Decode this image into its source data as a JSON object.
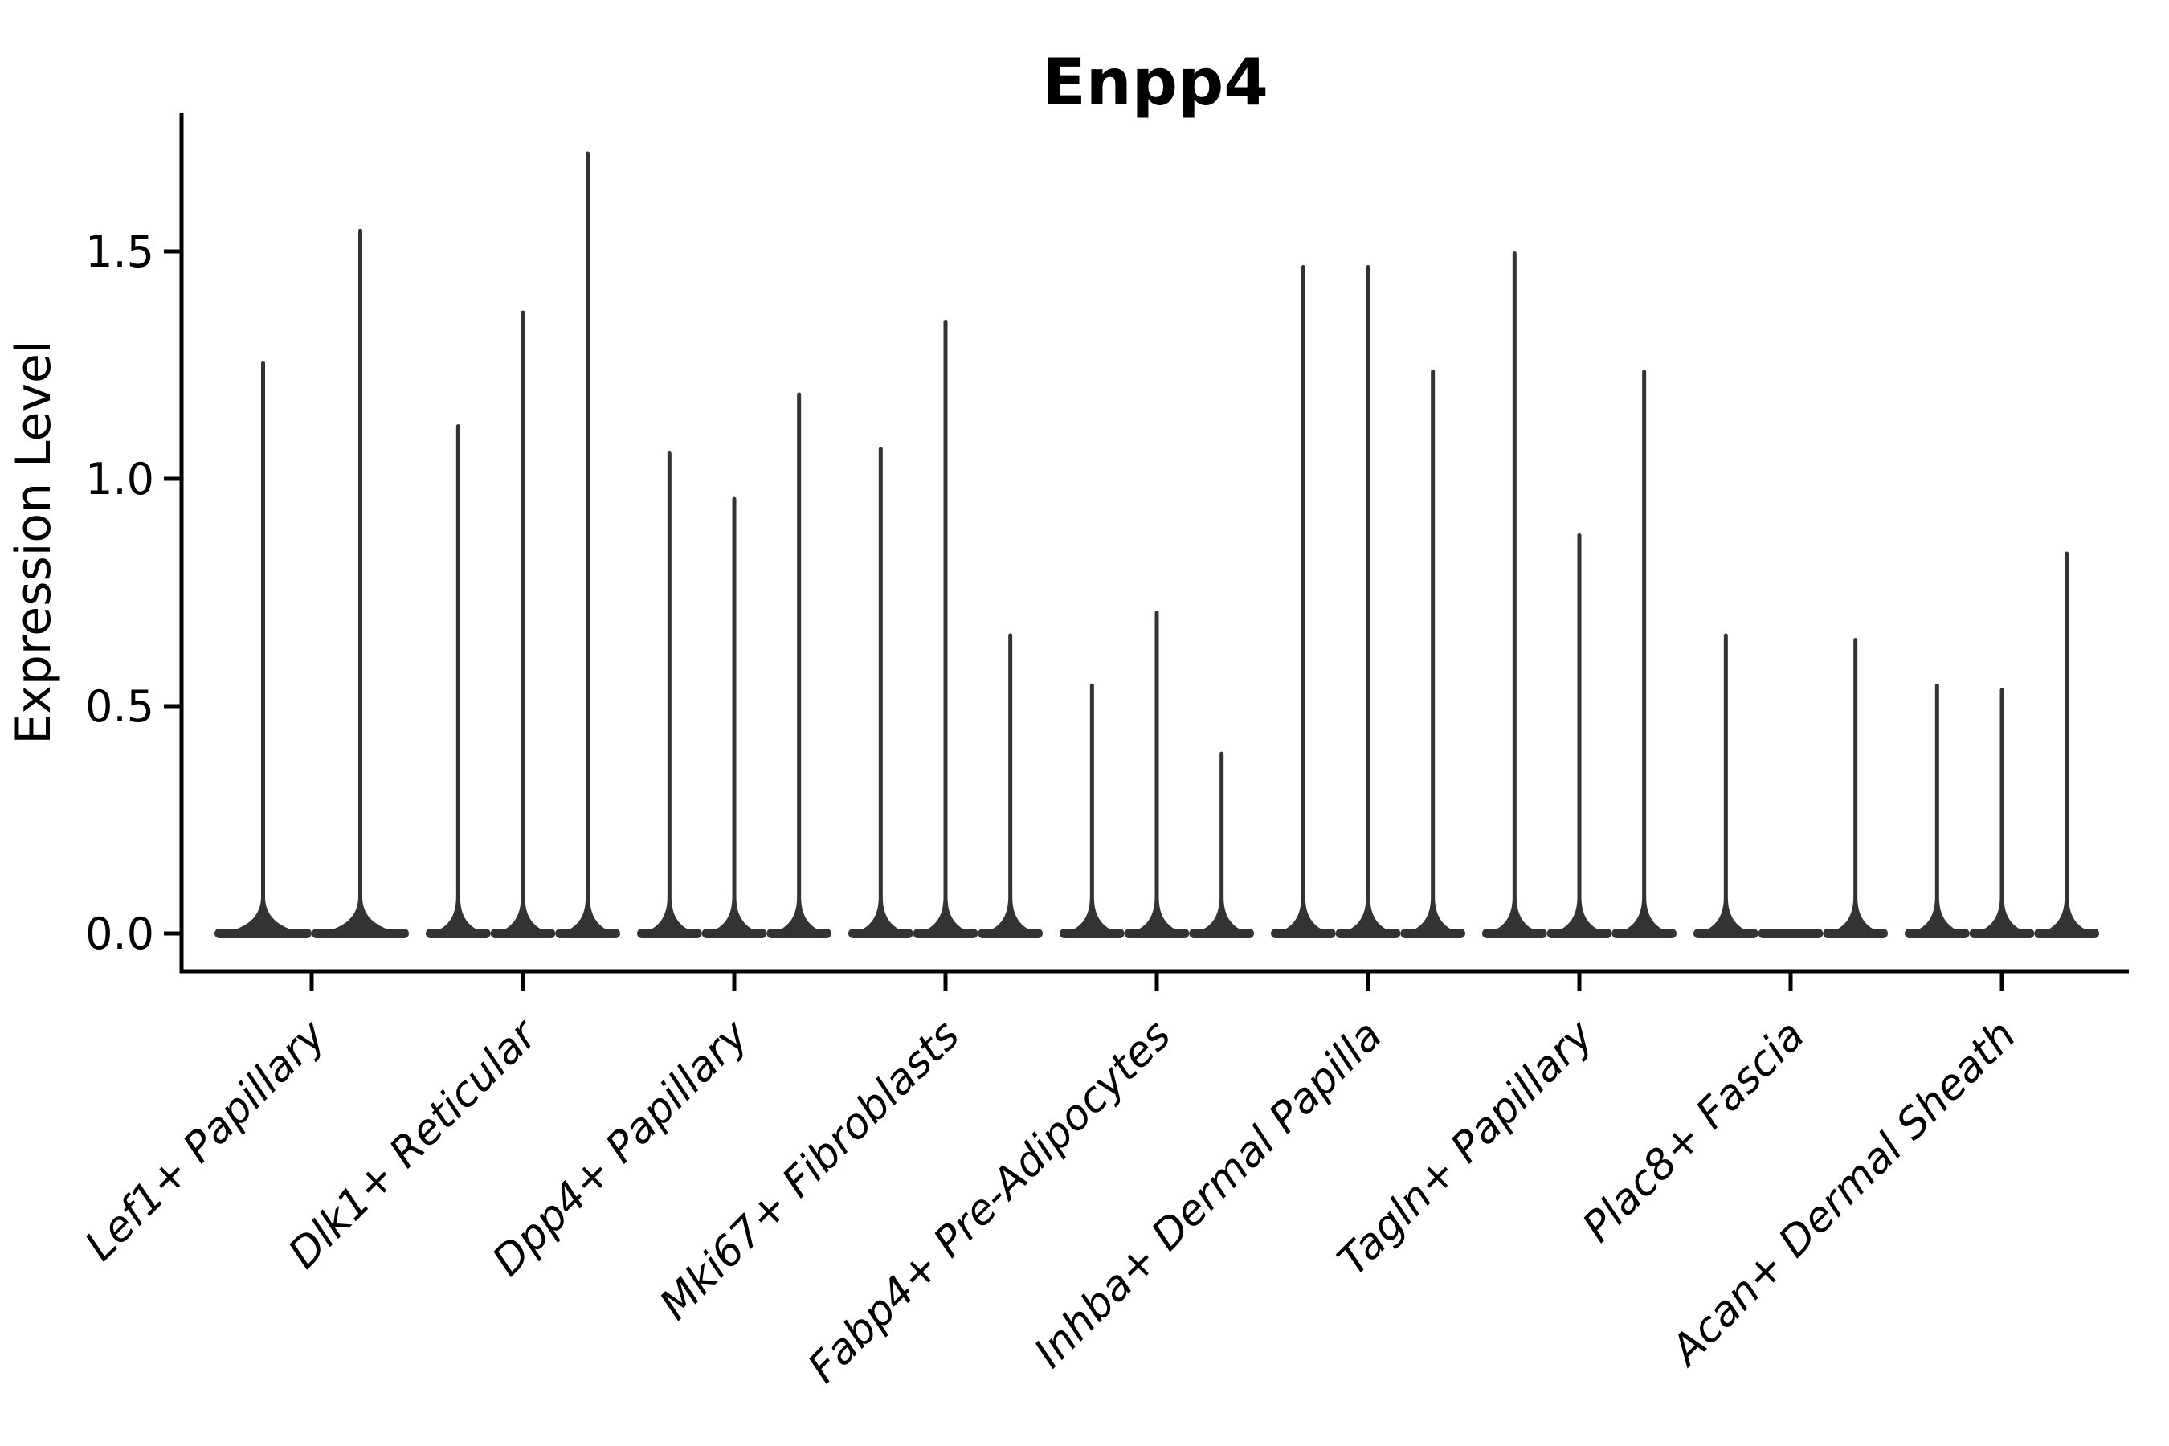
{
  "chart_data": {
    "type": "violin",
    "title": "Enpp4",
    "ylabel": "Expression Level",
    "xlabel": "",
    "ylim": [
      -0.08,
      1.8
    ],
    "grid": false,
    "legend": "none",
    "yticks": [
      {
        "label": "0.0",
        "value": 0.0
      },
      {
        "label": "0.5",
        "value": 0.5
      },
      {
        "label": "1.0",
        "value": 1.0
      },
      {
        "label": "1.5",
        "value": 1.5
      }
    ],
    "categories": [
      "Lef1+ Papillary",
      "Dlk1+ Reticular",
      "Dpp4+ Papillary",
      "Mki67+ Fibroblasts",
      "Fabp4+ Pre-Adipocytes",
      "Inhba+ Dermal Papilla",
      "Tagln+ Papillary",
      "Plac8+ Fascia",
      "Acan+ Dermal Sheath"
    ],
    "series": [
      {
        "category": "Lef1+ Papillary",
        "violin_max_values": [
          1.26,
          1.55
        ]
      },
      {
        "category": "Dlk1+ Reticular",
        "violin_max_values": [
          1.12,
          1.37,
          1.72
        ]
      },
      {
        "category": "Dpp4+ Papillary",
        "violin_max_values": [
          1.06,
          0.96,
          1.19
        ]
      },
      {
        "category": "Mki67+ Fibroblasts",
        "violin_max_values": [
          1.07,
          1.35,
          0.66
        ]
      },
      {
        "category": "Fabp4+ Pre-Adipocytes",
        "violin_max_values": [
          0.55,
          0.71,
          0.4
        ]
      },
      {
        "category": "Inhba+ Dermal Papilla",
        "violin_max_values": [
          1.47,
          1.47,
          1.24
        ]
      },
      {
        "category": "Tagln+ Papillary",
        "violin_max_values": [
          1.5,
          0.88,
          1.24
        ]
      },
      {
        "category": "Plac8+ Fascia",
        "violin_max_values": [
          0.66,
          0.0,
          0.65
        ]
      },
      {
        "category": "Acan+ Dermal Sheath",
        "violin_max_values": [
          0.55,
          0.54,
          0.84
        ]
      }
    ],
    "colors": {
      "violin": "#333333",
      "axis": "#000000",
      "text": "#000000",
      "background": "#ffffff"
    }
  }
}
